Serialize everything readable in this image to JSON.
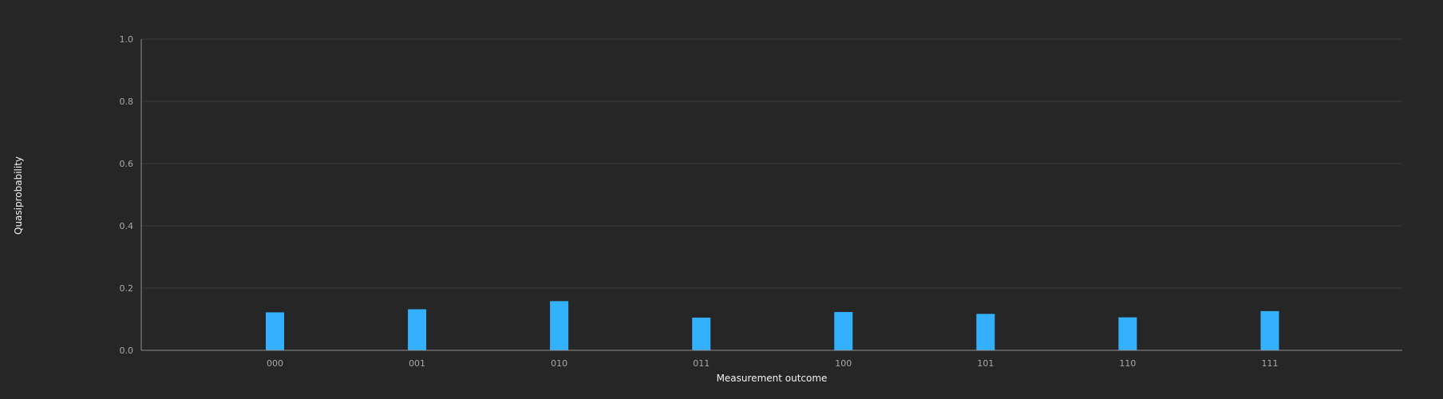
{
  "chart_data": {
    "type": "bar",
    "categories": [
      "000",
      "001",
      "010",
      "011",
      "100",
      "101",
      "110",
      "111"
    ],
    "values": [
      0.122,
      0.132,
      0.158,
      0.105,
      0.123,
      0.117,
      0.106,
      0.126
    ],
    "title": "",
    "xlabel": "Measurement outcome",
    "ylabel": "Quasiprobability",
    "ylim": [
      0,
      1.0
    ],
    "yticks": [
      "0.0",
      "0.2",
      "0.4",
      "0.6",
      "0.8",
      "1.0"
    ],
    "grid": true,
    "colors": {
      "bar": "#33b1ff",
      "background": "#262626",
      "grid": "#393939",
      "axis": "#8d8d8d",
      "tick_text": "#a8a8a8",
      "title_text": "#f4f4f4"
    }
  }
}
